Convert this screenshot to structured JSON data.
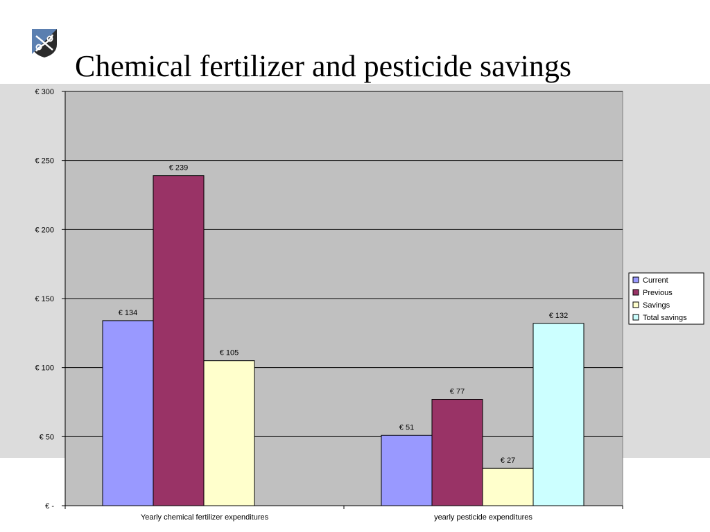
{
  "slide": {
    "title": "Chemical fertilizer and pesticide savings"
  },
  "colors": {
    "band": "#dcdcdc",
    "plot_area": "#c0c0c0",
    "Current": "#9999ff",
    "Previous": "#993366",
    "Savings": "#ffffcc",
    "Total savings": "#ccffff"
  },
  "chart_data": {
    "type": "bar",
    "title": "",
    "xlabel": "",
    "ylabel": "",
    "ylim": [
      0,
      300
    ],
    "yticks": [
      0,
      50,
      100,
      150,
      200,
      250,
      300
    ],
    "ytick_labels": [
      "€ -",
      "€ 50",
      "€ 100",
      "€ 150",
      "€ 200",
      "€ 250",
      "€ 300"
    ],
    "grid": true,
    "legend_position": "right",
    "groups": [
      {
        "category": "Yearly chemical fertilizer expenditures",
        "bars": [
          {
            "series": "Current",
            "value": 134,
            "label": "€ 134"
          },
          {
            "series": "Previous",
            "value": 239,
            "label": "€ 239"
          },
          {
            "series": "Savings",
            "value": 105,
            "label": "€ 105"
          }
        ]
      },
      {
        "category": "yearly pesticide expenditures",
        "bars": [
          {
            "series": "Current",
            "value": 51,
            "label": "€ 51"
          },
          {
            "series": "Previous",
            "value": 77,
            "label": "€ 77"
          },
          {
            "series": "Savings",
            "value": 27,
            "label": "€ 27"
          },
          {
            "series": "Total savings",
            "value": 132,
            "label": "€ 132"
          }
        ]
      }
    ],
    "legend": [
      "Current",
      "Previous",
      "Savings",
      "Total savings"
    ]
  }
}
